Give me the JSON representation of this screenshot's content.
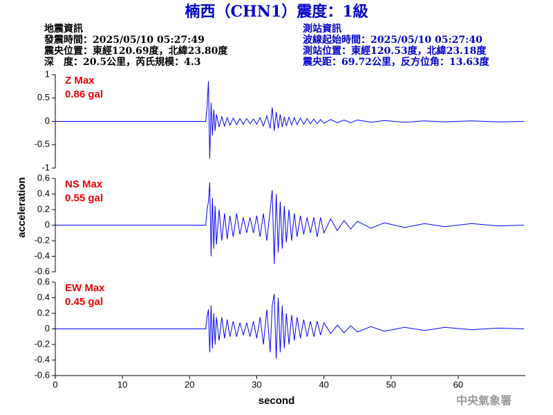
{
  "header": {
    "title": "楠西（CHN1）震度：1級",
    "event": {
      "heading": "地震資訊",
      "lines": [
        "發震時間：2025/05/10 05:27:49",
        "震央位置：東經120.69度，北緯23.80度",
        "深　度：20.5公里，芮氏規模：4.3"
      ]
    },
    "station": {
      "heading": "測站資訊",
      "lines": [
        "波線起始時間：2025/05/10 05:27:40",
        "測站位置：東經120.53度，北緯23.18度",
        "震央距：69.72公里，反方位角：13.63度"
      ]
    }
  },
  "y_label": "acceleration",
  "x_label": "second",
  "watermark": "中央氣象署",
  "chart_data": [
    {
      "type": "line",
      "annotations": [
        "Z Max",
        "0.86 gal"
      ],
      "color": "#0000ff",
      "xlim": [
        0,
        70
      ],
      "ylim": [
        -1,
        1
      ],
      "yticks": [
        -1,
        -0.5,
        0,
        0.5,
        1
      ],
      "x": [
        0,
        22.4,
        22.6,
        22.8,
        23.0,
        23.2,
        23.4,
        23.6,
        23.8,
        24.0,
        24.4,
        24.8,
        25.2,
        25.6,
        26,
        26.5,
        27,
        27.5,
        28,
        28.5,
        29,
        29.5,
        30,
        30.5,
        31,
        31.5,
        32,
        32.3,
        32.6,
        32.9,
        33.2,
        33.5,
        33.8,
        34.1,
        34.4,
        34.8,
        35.2,
        35.6,
        36,
        36.5,
        37,
        37.5,
        38,
        38.5,
        39,
        39.5,
        40,
        41,
        42,
        43,
        44,
        45,
        47,
        49,
        52,
        55,
        58,
        62,
        66,
        69.8
      ],
      "values": [
        0,
        0,
        0.3,
        0.86,
        -0.8,
        0.4,
        -0.3,
        0.25,
        -0.2,
        0.15,
        -0.12,
        0.1,
        -0.1,
        0.08,
        -0.08,
        0.07,
        -0.07,
        0.06,
        -0.06,
        0.06,
        -0.05,
        0.05,
        -0.06,
        0.08,
        -0.1,
        0.12,
        -0.15,
        0.3,
        -0.2,
        0.2,
        -0.15,
        0.15,
        -0.12,
        0.1,
        -0.1,
        0.09,
        -0.08,
        0.08,
        -0.07,
        0.07,
        -0.06,
        0.06,
        -0.05,
        0.05,
        -0.05,
        0.04,
        -0.04,
        0.04,
        -0.03,
        0.03,
        -0.03,
        0.03,
        -0.02,
        0.02,
        -0.02,
        0.01,
        -0.01,
        0.01,
        -0.01,
        0
      ]
    },
    {
      "type": "line",
      "annotations": [
        "NS Max",
        "0.55 gal"
      ],
      "color": "#0000ff",
      "xlim": [
        0,
        70
      ],
      "ylim": [
        -0.6,
        0.6
      ],
      "yticks": [
        -0.6,
        -0.4,
        -0.2,
        0,
        0.2,
        0.4,
        0.6
      ],
      "x": [
        0,
        22.4,
        22.6,
        22.8,
        23.0,
        23.2,
        23.4,
        23.6,
        23.8,
        24.0,
        24.4,
        24.8,
        25.2,
        25.6,
        26,
        26.5,
        27,
        27.5,
        28,
        28.5,
        29,
        29.5,
        30,
        30.5,
        31,
        31.5,
        32,
        32.3,
        32.6,
        32.9,
        33.2,
        33.5,
        33.8,
        34.1,
        34.4,
        34.8,
        35.2,
        35.6,
        36,
        36.5,
        37,
        37.5,
        38,
        38.5,
        39,
        39.5,
        40,
        41,
        42,
        43,
        44,
        45,
        47,
        49,
        52,
        55,
        58,
        62,
        66,
        69.8
      ],
      "values": [
        0,
        0,
        0.2,
        0.3,
        0.55,
        -0.4,
        0.35,
        -0.3,
        0.25,
        -0.25,
        0.2,
        -0.2,
        0.15,
        -0.18,
        0.12,
        -0.15,
        0.15,
        -0.12,
        0.1,
        -0.1,
        0.1,
        -0.1,
        0.12,
        -0.15,
        0.15,
        -0.2,
        0.2,
        0.45,
        -0.5,
        0.4,
        -0.35,
        0.3,
        -0.3,
        0.25,
        -0.22,
        0.2,
        -0.2,
        0.15,
        -0.15,
        0.12,
        -0.12,
        0.1,
        -0.1,
        0.1,
        -0.15,
        0.1,
        -0.1,
        0.08,
        -0.07,
        0.06,
        -0.05,
        0.05,
        -0.04,
        0.03,
        -0.03,
        0.02,
        -0.02,
        0.02,
        -0.01,
        0
      ]
    },
    {
      "type": "line",
      "annotations": [
        "EW Max",
        "0.45 gal"
      ],
      "color": "#0000ff",
      "xlim": [
        0,
        70
      ],
      "ylim": [
        -0.6,
        0.6
      ],
      "yticks": [
        -0.6,
        -0.4,
        -0.2,
        0,
        0.2,
        0.4,
        0.6
      ],
      "xticks": [
        0,
        10,
        20,
        30,
        40,
        50,
        60
      ],
      "x": [
        0,
        22.4,
        22.6,
        22.8,
        23.0,
        23.2,
        23.4,
        23.6,
        23.8,
        24.0,
        24.4,
        24.8,
        25.2,
        25.6,
        26,
        26.5,
        27,
        27.5,
        28,
        28.5,
        29,
        29.5,
        30,
        30.5,
        31,
        31.5,
        32,
        32.3,
        32.6,
        32.9,
        33.2,
        33.5,
        33.8,
        34.1,
        34.4,
        34.8,
        35.2,
        35.6,
        36,
        36.5,
        37,
        37.5,
        38,
        38.5,
        39,
        39.5,
        40,
        41,
        42,
        43,
        44,
        45,
        47,
        49,
        52,
        55,
        58,
        62,
        66,
        69.8
      ],
      "values": [
        0,
        0,
        0.15,
        0.25,
        -0.3,
        0.3,
        -0.25,
        0.2,
        -0.2,
        0.15,
        -0.15,
        0.15,
        -0.12,
        0.12,
        -0.1,
        0.1,
        -0.1,
        0.08,
        -0.08,
        0.08,
        -0.1,
        0.1,
        -0.12,
        0.15,
        -0.2,
        0.25,
        -0.3,
        0.3,
        0.45,
        -0.38,
        0.4,
        -0.3,
        0.3,
        -0.25,
        0.2,
        -0.2,
        0.18,
        -0.15,
        0.15,
        -0.12,
        0.12,
        -0.1,
        0.1,
        -0.1,
        0.1,
        -0.08,
        0.08,
        -0.06,
        0.05,
        -0.05,
        0.04,
        -0.04,
        0.03,
        -0.03,
        0.02,
        -0.02,
        0.02,
        -0.01,
        0.01,
        0
      ]
    }
  ]
}
